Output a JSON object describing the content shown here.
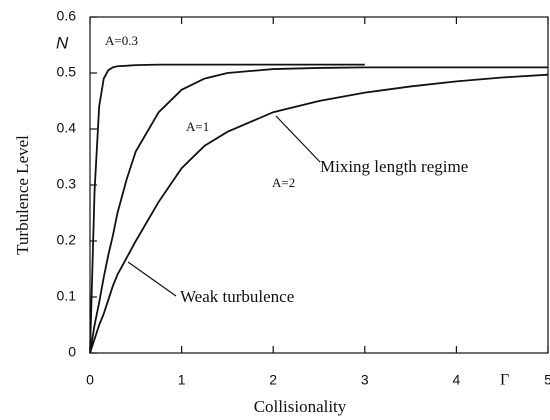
{
  "chart_data": {
    "type": "line",
    "y_label": "Turbulence Level",
    "x_label": "Collisionality",
    "y_symbol": "N",
    "x_symbol": "Γ",
    "annotations": [
      "Mixing length regime",
      "Weak turbulence"
    ],
    "x": [
      0,
      0.05,
      0.1,
      0.15,
      0.2,
      0.25,
      0.3,
      0.4,
      0.5,
      0.75,
      1,
      1.25,
      1.5,
      2,
      2.5,
      3,
      3.5,
      4,
      4.5,
      5
    ],
    "series": [
      {
        "name": "A=0.3",
        "color": "#111111",
        "values": [
          0,
          0.29,
          0.44,
          0.49,
          0.505,
          0.51,
          0.512,
          0.513,
          0.514,
          0.515,
          0.515,
          0.515,
          0.515,
          0.515,
          0.515,
          0.515,
          null,
          null,
          null,
          null
        ]
      },
      {
        "name": "A=1",
        "color": "#111111",
        "values": [
          0,
          0.05,
          0.09,
          0.135,
          0.175,
          0.21,
          0.25,
          0.31,
          0.36,
          0.43,
          0.47,
          0.49,
          0.5,
          0.507,
          0.509,
          0.51,
          0.51,
          0.51,
          0.51,
          0.51
        ]
      },
      {
        "name": "A=2",
        "color": "#111111",
        "values": [
          0,
          0.025,
          0.05,
          0.07,
          0.095,
          0.12,
          0.14,
          0.17,
          0.2,
          0.27,
          0.33,
          0.37,
          0.395,
          0.43,
          0.45,
          0.465,
          0.476,
          0.485,
          0.492,
          0.497
        ]
      }
    ],
    "xlim": [
      0,
      5
    ],
    "ylim": [
      0,
      0.6
    ],
    "xticks": [
      0,
      1,
      2,
      3,
      4,
      5
    ],
    "yticks": [
      0,
      0.1,
      0.2,
      0.3,
      0.4,
      0.5,
      0.6
    ]
  }
}
